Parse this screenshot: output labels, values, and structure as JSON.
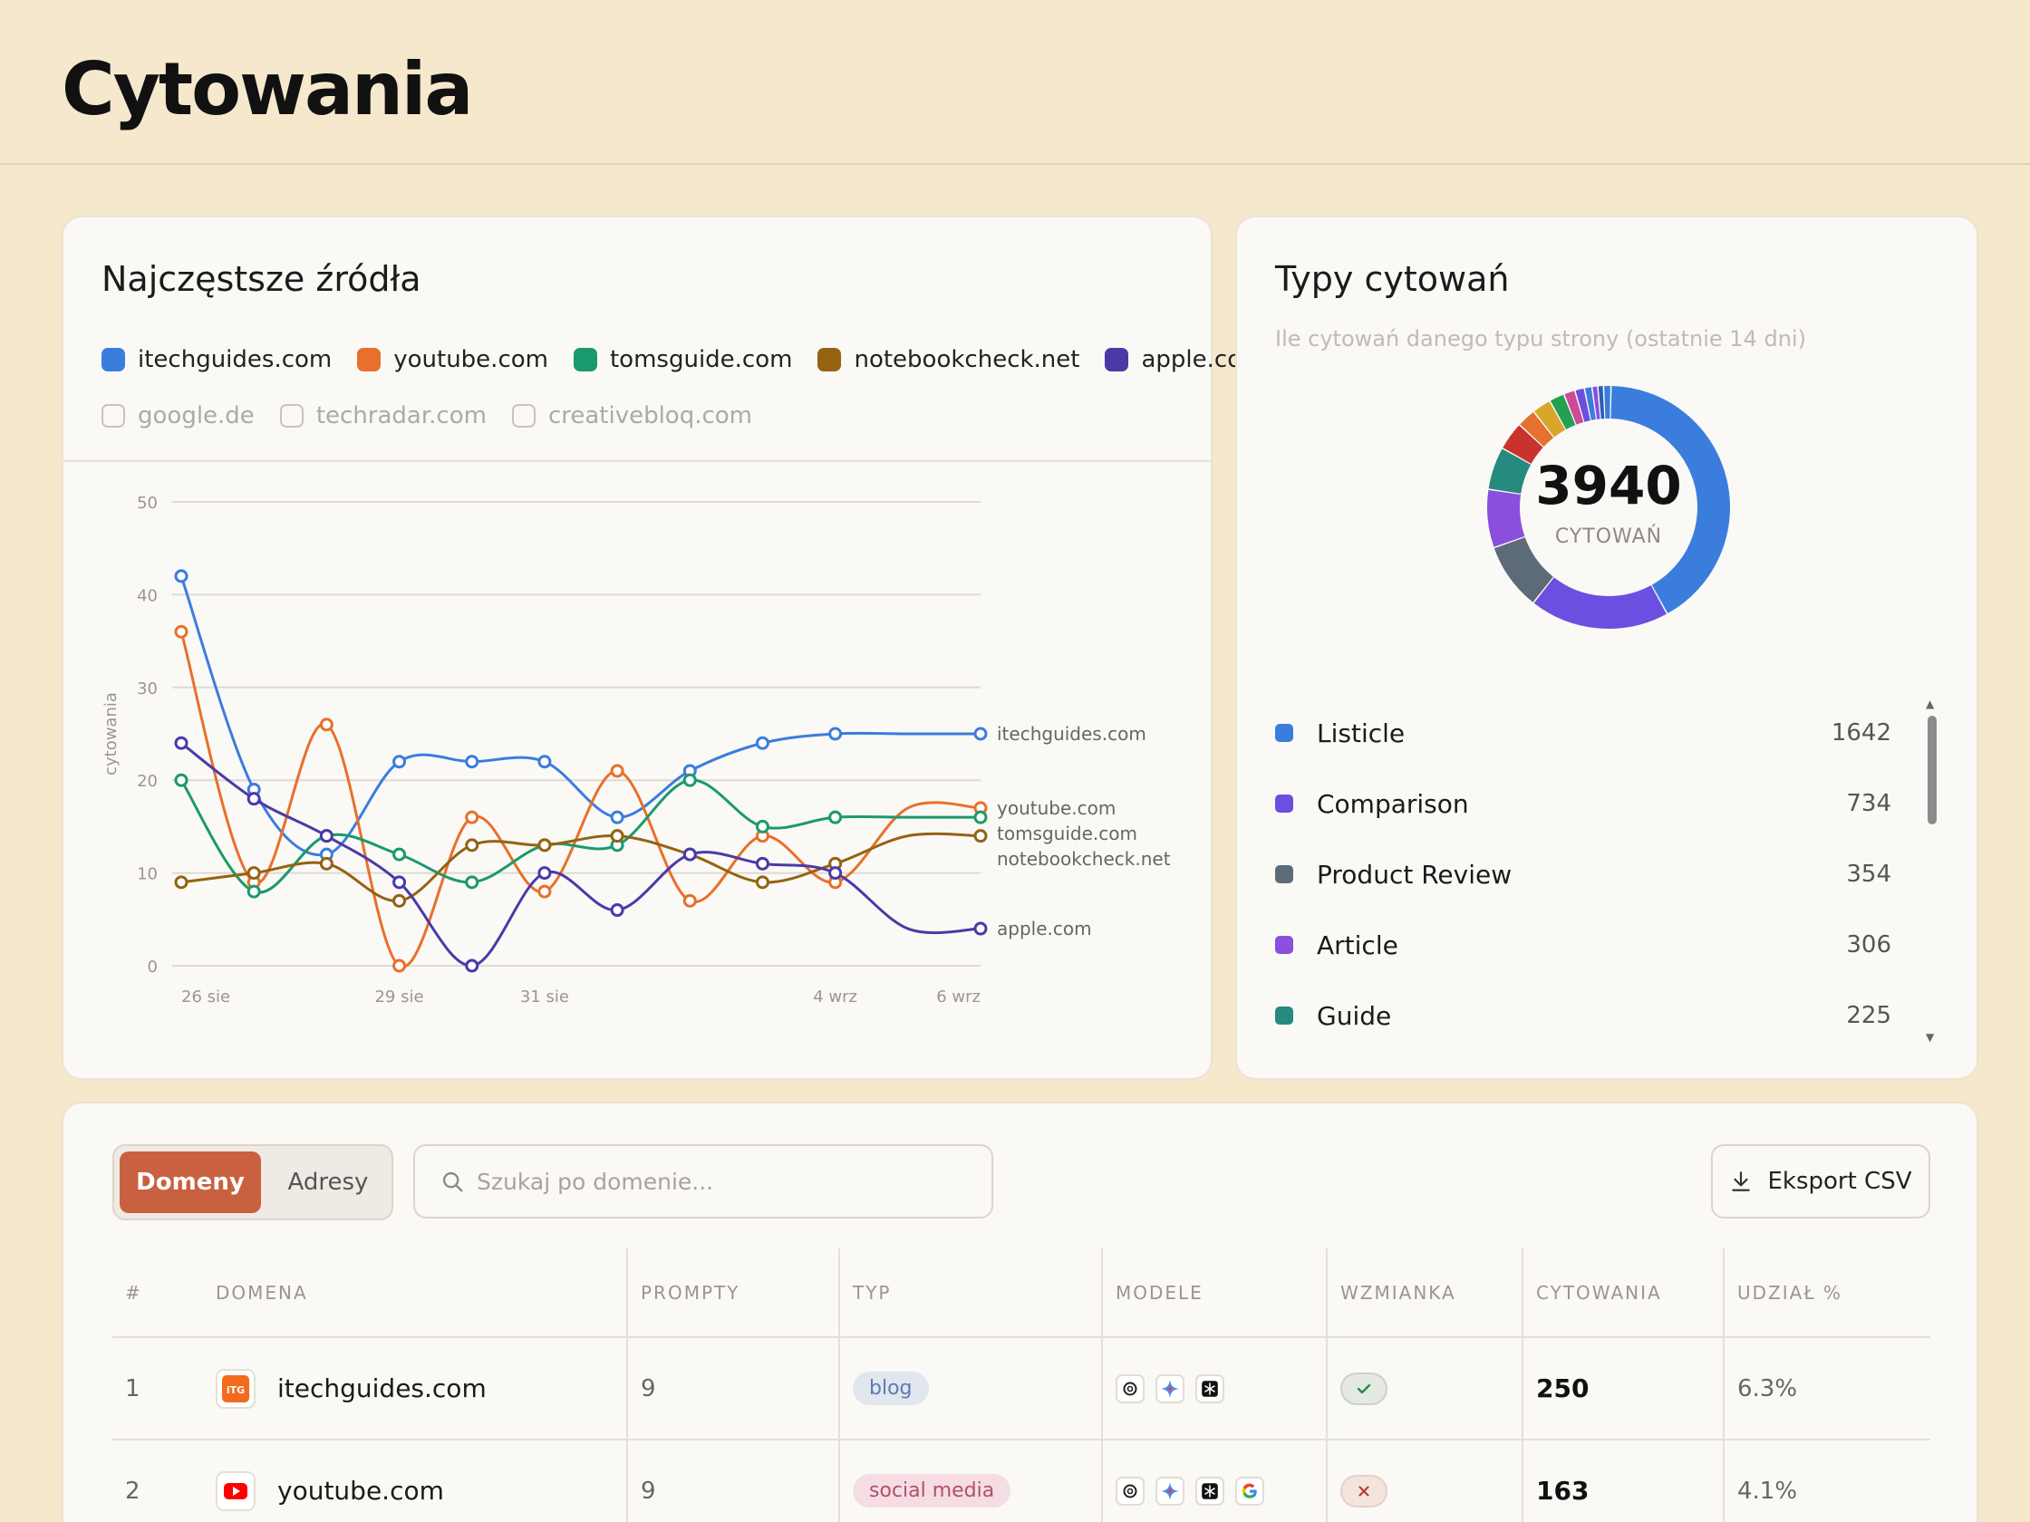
{
  "header": {
    "title": "Cytowania"
  },
  "sources": {
    "title": "Najczęstsze źródła",
    "legend_active": [
      {
        "label": "itechguides.com",
        "color": "#3b7ddd"
      },
      {
        "label": "youtube.com",
        "color": "#e8702a"
      },
      {
        "label": "tomsguide.com",
        "color": "#1a9a6c"
      },
      {
        "label": "notebookcheck.net",
        "color": "#946312"
      },
      {
        "label": "apple.com",
        "color": "#4a3aa8"
      }
    ],
    "legend_inactive": [
      "google.de",
      "techradar.com",
      "creativebloq.com"
    ]
  },
  "chart_data": {
    "type": "line",
    "xlabel": "",
    "ylabel": "cytowania",
    "ylim": [
      0,
      50
    ],
    "yticks": [
      "0",
      "10",
      "20",
      "30",
      "40",
      "50"
    ],
    "x": [
      "26 sie",
      "27 sie",
      "28 sie",
      "29 sie",
      "30 sie",
      "31 sie",
      "1 wrz",
      "2 wrz",
      "3 wrz",
      "4 wrz",
      "5 wrz",
      "6 wrz"
    ],
    "xtick_labels": [
      "26 sie",
      "29 sie",
      "31 sie",
      "4 wrz",
      "6 wrz"
    ],
    "series": [
      {
        "name": "itechguides.com",
        "color": "#3b7ddd",
        "values": [
          42,
          19,
          12,
          22,
          22,
          22,
          16,
          21,
          24,
          25,
          25,
          25
        ]
      },
      {
        "name": "youtube.com",
        "color": "#e8702a",
        "values": [
          36,
          9,
          26,
          0,
          16,
          8,
          21,
          7,
          14,
          9,
          17,
          17
        ]
      },
      {
        "name": "tomsguide.com",
        "color": "#1a9a6c",
        "values": [
          20,
          8,
          14,
          12,
          9,
          13,
          13,
          20,
          15,
          16,
          16,
          16
        ]
      },
      {
        "name": "notebookcheck.net",
        "color": "#946312",
        "values": [
          9,
          10,
          11,
          7,
          13,
          13,
          14,
          12,
          9,
          11,
          14,
          14
        ]
      },
      {
        "name": "apple.com",
        "color": "#4a3aa8",
        "values": [
          24,
          18,
          14,
          9,
          0,
          10,
          6,
          12,
          11,
          10,
          4,
          4
        ]
      }
    ],
    "end_labels": [
      "itechguides.com",
      "youtube.com",
      "tomsguide.com",
      "notebookcheck.net",
      "apple.com"
    ]
  },
  "types": {
    "title": "Typy cytowań",
    "subtitle": "Ile cytowań danego typu strony (ostatnie 14 dni)",
    "total": "3940",
    "total_label": "CYTOWAŃ",
    "items": [
      {
        "name": "Listicle",
        "value": "1642",
        "color": "#3b7ddd"
      },
      {
        "name": "Comparison",
        "value": "734",
        "color": "#6b4fe0"
      },
      {
        "name": "Product Review",
        "value": "354",
        "color": "#5d6a78"
      },
      {
        "name": "Article",
        "value": "306",
        "color": "#8a4fdc"
      },
      {
        "name": "Guide",
        "value": "225",
        "color": "#278a7e"
      }
    ],
    "donut_segments": [
      {
        "value": 1642,
        "color": "#3b7ddd"
      },
      {
        "value": 734,
        "color": "#6b4fe0"
      },
      {
        "value": 354,
        "color": "#5d6a78"
      },
      {
        "value": 306,
        "color": "#8a4fdc"
      },
      {
        "value": 225,
        "color": "#278a7e"
      },
      {
        "value": 150,
        "color": "#c9332d"
      },
      {
        "value": 100,
        "color": "#e5702f"
      },
      {
        "value": 100,
        "color": "#d9a62a"
      },
      {
        "value": 80,
        "color": "#25a050"
      },
      {
        "value": 60,
        "color": "#cc4a98"
      },
      {
        "value": 50,
        "color": "#6b4fe0"
      },
      {
        "value": 40,
        "color": "#3b7ddd"
      },
      {
        "value": 30,
        "color": "#8a4fdc"
      },
      {
        "value": 30,
        "color": "#2b5fb8"
      },
      {
        "value": 39,
        "color": "#3b7ddd"
      }
    ]
  },
  "table": {
    "tabs": [
      "Domeny",
      "Adresy"
    ],
    "search_placeholder": "Szukaj po domenie...",
    "export_label": "Eksport CSV",
    "columns": [
      "#",
      "DOMENA",
      "PROMPTY",
      "TYP",
      "MODELE",
      "WZMIANKA",
      "CYTOWANIA",
      "UDZIAŁ %"
    ],
    "rows": [
      {
        "rank": "1",
        "domain": "itechguides.com",
        "prompts": "9",
        "type": "blog",
        "models": [
          "chatgpt-icon",
          "gemini-icon",
          "perplexity-icon"
        ],
        "mention": true,
        "citations": "250",
        "share": "6.3%"
      },
      {
        "rank": "2",
        "domain": "youtube.com",
        "prompts": "9",
        "type": "social media",
        "models": [
          "chatgpt-icon",
          "gemini-icon",
          "perplexity-icon",
          "google-icon"
        ],
        "mention": false,
        "citations": "163",
        "share": "4.1%"
      }
    ]
  }
}
